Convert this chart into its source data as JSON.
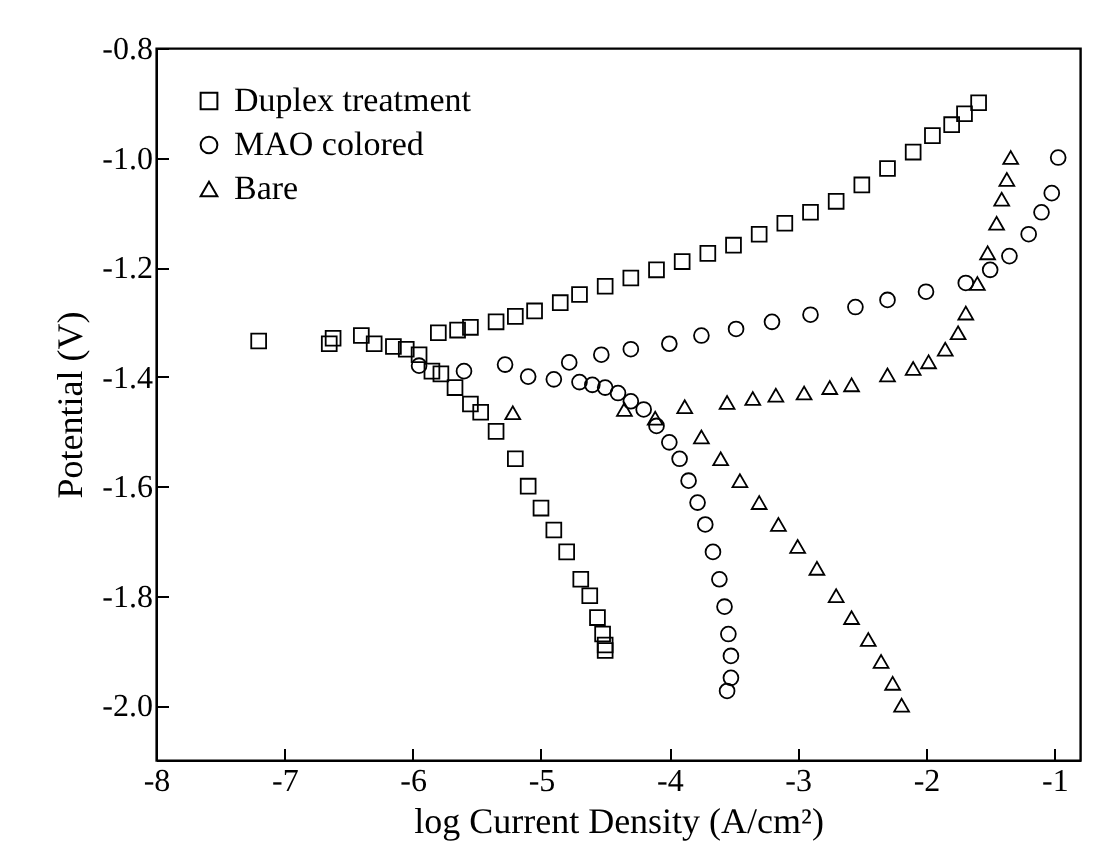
{
  "chart_data": {
    "type": "scatter",
    "xlabel": "log Current Density (A/cm²)",
    "ylabel": "Potential (V)",
    "xlim": [
      -8,
      -0.8
    ],
    "xticks": [
      {
        "value": -8,
        "label": "-8"
      },
      {
        "value": -7,
        "label": "-7"
      },
      {
        "value": -6,
        "label": "-6"
      },
      {
        "value": -5,
        "label": "-5"
      },
      {
        "value": -4,
        "label": "-4"
      },
      {
        "value": -3,
        "label": "-3"
      },
      {
        "value": -2,
        "label": "-2"
      },
      {
        "value": -1,
        "label": "-1"
      }
    ],
    "ylim": [
      -2.1,
      -0.8
    ],
    "yticks": [
      {
        "value": -2.0,
        "label": "-2.0"
      },
      {
        "value": -1.8,
        "label": "-1.8"
      },
      {
        "value": -1.6,
        "label": "-1.6"
      },
      {
        "value": -1.4,
        "label": "-1.4"
      },
      {
        "value": -1.2,
        "label": "-1.2"
      },
      {
        "value": -1.0,
        "label": "-1.0"
      },
      {
        "value": -0.8,
        "label": "-0.8"
      }
    ],
    "grid": false,
    "legend": "top left",
    "series": [
      {
        "name": "Duplex treatment",
        "color": "#000000",
        "marker": "square",
        "x": [
          -7.2,
          -6.65,
          -6.62,
          -6.4,
          -6.3,
          -6.15,
          -6.05,
          -5.95,
          -5.85,
          -5.78,
          -5.67,
          -5.55,
          -5.47,
          -5.35,
          -5.2,
          -5.1,
          -5.0,
          -4.9,
          -4.8,
          -4.69,
          -4.62,
          -4.56,
          -4.52,
          -4.5,
          -4.5,
          -5.8,
          -5.65,
          -5.55,
          -5.35,
          -5.2,
          -5.05,
          -4.85,
          -4.7,
          -4.5,
          -4.3,
          -4.1,
          -3.9,
          -3.7,
          -3.5,
          -3.3,
          -3.1,
          -2.9,
          -2.7,
          -2.5,
          -2.3,
          -2.1,
          -1.95,
          -1.8,
          -1.7,
          -1.59
        ],
        "values": [
          -1.335,
          -1.34,
          -1.33,
          -1.325,
          -1.34,
          -1.345,
          -1.35,
          -1.36,
          -1.39,
          -1.395,
          -1.42,
          -1.45,
          -1.465,
          -1.5,
          -1.55,
          -1.6,
          -1.64,
          -1.68,
          -1.72,
          -1.77,
          -1.8,
          -1.84,
          -1.87,
          -1.89,
          -1.9,
          -1.32,
          -1.315,
          -1.31,
          -1.3,
          -1.29,
          -1.28,
          -1.265,
          -1.25,
          -1.235,
          -1.22,
          -1.205,
          -1.19,
          -1.175,
          -1.16,
          -1.14,
          -1.12,
          -1.1,
          -1.08,
          -1.05,
          -1.02,
          -0.99,
          -0.96,
          -0.94,
          -0.92,
          -0.9
        ]
      },
      {
        "name": "MAO colored",
        "color": "#000000",
        "marker": "circle",
        "x": [
          -5.95,
          -5.6,
          -5.28,
          -5.1,
          -4.9,
          -4.78,
          -4.7,
          -4.6,
          -4.5,
          -4.4,
          -4.3,
          -4.2,
          -4.1,
          -4.0,
          -3.92,
          -3.85,
          -3.78,
          -3.72,
          -3.66,
          -3.61,
          -3.57,
          -3.54,
          -3.52,
          -3.52,
          -3.55,
          -4.53,
          -4.3,
          -4.0,
          -3.75,
          -3.48,
          -3.2,
          -2.9,
          -2.55,
          -2.3,
          -2.0,
          -1.69,
          -1.5,
          -1.35,
          -1.2,
          -1.1,
          -1.02,
          -0.97
        ],
        "values": [
          -1.38,
          -1.39,
          -1.378,
          -1.4,
          -1.405,
          -1.374,
          -1.41,
          -1.415,
          -1.42,
          -1.43,
          -1.445,
          -1.46,
          -1.49,
          -1.52,
          -1.55,
          -1.59,
          -1.63,
          -1.67,
          -1.72,
          -1.77,
          -1.82,
          -1.87,
          -1.91,
          -1.95,
          -1.974,
          -1.36,
          -1.35,
          -1.34,
          -1.325,
          -1.313,
          -1.3,
          -1.287,
          -1.273,
          -1.26,
          -1.245,
          -1.229,
          -1.205,
          -1.18,
          -1.14,
          -1.1,
          -1.065,
          -1.0
        ]
      },
      {
        "name": "Bare",
        "color": "#000000",
        "marker": "triangle",
        "x": [
          -5.22,
          -4.35,
          -4.11,
          -3.88,
          -3.75,
          -3.6,
          -3.45,
          -3.3,
          -3.15,
          -3.0,
          -2.85,
          -2.7,
          -2.58,
          -2.45,
          -2.35,
          -2.26,
          -2.19,
          -3.55,
          -3.35,
          -3.17,
          -2.95,
          -2.75,
          -2.58,
          -2.3,
          -2.1,
          -1.98,
          -1.85,
          -1.75,
          -1.69,
          -1.6,
          -1.52,
          -1.45,
          -1.41,
          -1.37,
          -1.34
        ],
        "values": [
          -1.466,
          -1.46,
          -1.476,
          -1.455,
          -1.51,
          -1.55,
          -1.59,
          -1.63,
          -1.67,
          -1.71,
          -1.75,
          -1.8,
          -1.84,
          -1.88,
          -1.92,
          -1.96,
          -2.0,
          -1.447,
          -1.44,
          -1.434,
          -1.43,
          -1.42,
          -1.415,
          -1.397,
          -1.385,
          -1.373,
          -1.35,
          -1.32,
          -1.284,
          -1.23,
          -1.174,
          -1.12,
          -1.076,
          -1.04,
          -1.0
        ]
      }
    ]
  }
}
